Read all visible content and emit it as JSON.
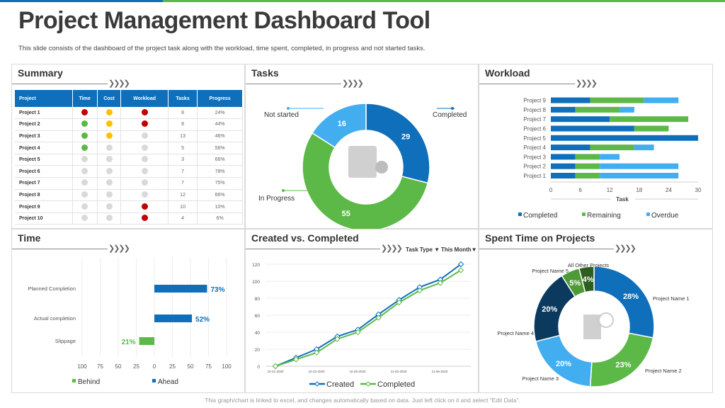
{
  "header": {
    "title": "Project Management Dashboard Tool",
    "subtitle": "This slide consists of the dashboard of the project task along with the workload, time spent, completed, in progress and not started tasks."
  },
  "colors": {
    "blue": "#0f6fba",
    "green": "#5cb947",
    "lightblue": "#42aef0",
    "red": "#c00000",
    "amber": "#ffc000",
    "grey": "#d9d9d9",
    "navy": "#0b3a5e",
    "darkgreen": "#2e5e1e",
    "midgreen": "#4d9a36"
  },
  "arrows": "❯❯❯❯",
  "summary": {
    "title": "Summary",
    "columns": [
      "Project",
      "Time",
      "Cost",
      "Workload",
      "Tasks",
      "Progress"
    ],
    "rows": [
      {
        "project": "Project 1",
        "time": "red",
        "cost": "amber",
        "workload": "red",
        "tasks": "8",
        "progress": "24%"
      },
      {
        "project": "Project 2",
        "time": "green",
        "cost": "amber",
        "workload": "red",
        "tasks": "8",
        "progress": "44%"
      },
      {
        "project": "Project 3",
        "time": "green",
        "cost": "amber",
        "workload": "grey",
        "tasks": "13",
        "progress": "46%"
      },
      {
        "project": "Project 4",
        "time": "green",
        "cost": "grey",
        "workload": "grey",
        "tasks": "5",
        "progress": "56%"
      },
      {
        "project": "Project 5",
        "time": "grey",
        "cost": "grey",
        "workload": "grey",
        "tasks": "3",
        "progress": "66%"
      },
      {
        "project": "Project 6",
        "time": "grey",
        "cost": "grey",
        "workload": "grey",
        "tasks": "7",
        "progress": "78%"
      },
      {
        "project": "Project 7",
        "time": "grey",
        "cost": "grey",
        "workload": "grey",
        "tasks": "7",
        "progress": "75%"
      },
      {
        "project": "Project 8",
        "time": "grey",
        "cost": "grey",
        "workload": "grey",
        "tasks": "12",
        "progress": "66%"
      },
      {
        "project": "Project 9",
        "time": "grey",
        "cost": "grey",
        "workload": "red",
        "tasks": "10",
        "progress": "10%"
      },
      {
        "project": "Project 10",
        "time": "grey",
        "cost": "grey",
        "workload": "red",
        "tasks": "4",
        "progress": "6%"
      }
    ]
  },
  "tasks": {
    "title": "Tasks"
  },
  "workload": {
    "title": "Workload"
  },
  "time": {
    "title": "Time"
  },
  "created": {
    "title": "Created  vs. Completed",
    "filter1": "Task Type ▼",
    "filter2": "This Month▼"
  },
  "spent": {
    "title": "Spent Time on Projects"
  },
  "footer": "This graph/chart is linked to excel, and changes automatically based on data. Just left click on it and select “Edit Data”.",
  "chart_data": [
    {
      "type": "pie",
      "title": "Tasks",
      "labels": [
        "Completed",
        "In Progress",
        "Not started"
      ],
      "values": [
        29,
        55,
        16
      ]
    },
    {
      "type": "bar",
      "title": "Workload",
      "orientation": "horizontal",
      "stacked": true,
      "categories": [
        "Project 1",
        "Project 2",
        "Project 3",
        "Project 4",
        "Project 5",
        "Project 6",
        "Project 7",
        "Project 8",
        "Project 9"
      ],
      "series": [
        {
          "name": "Completed",
          "values": [
            5,
            5,
            5,
            8,
            30,
            17,
            12,
            5,
            8
          ]
        },
        {
          "name": "Remaining",
          "values": [
            5,
            5,
            5,
            9,
            0,
            7,
            16,
            9,
            11
          ]
        },
        {
          "name": "Overdue",
          "values": [
            16,
            16,
            4,
            4,
            0,
            0,
            0,
            3,
            7
          ]
        }
      ],
      "xlabel": "Task",
      "xlim": [
        0,
        30
      ],
      "xticks": [
        "0",
        "6",
        "12",
        "18",
        "24",
        "30"
      ],
      "legend": "bottom"
    },
    {
      "type": "bar",
      "title": "Time",
      "orientation": "horizontal",
      "categories": [
        "Planned Completion",
        "Actual completion",
        "Slippage"
      ],
      "series": [
        {
          "name": "Ahead",
          "values": [
            73,
            52,
            0
          ]
        },
        {
          "name": "Behind",
          "values": [
            0,
            0,
            21
          ]
        }
      ],
      "data_labels": [
        "73%",
        "52%",
        "21%"
      ],
      "xlim": [
        -100,
        100
      ],
      "xticks": [
        "100",
        "75",
        "50",
        "25",
        "0",
        "25",
        "50",
        "75",
        "100"
      ],
      "legend": "bottom"
    },
    {
      "type": "line",
      "title": "Created vs. Completed",
      "xticks": [
        "10-21-2020",
        "10-23-2020",
        "10-25-2020",
        "11-02-2020",
        "11-06-2020"
      ],
      "series": [
        {
          "name": "Created",
          "values": [
            0,
            10,
            20,
            35,
            43,
            61,
            78,
            93,
            102,
            120
          ]
        },
        {
          "name": "Completed",
          "values": [
            0,
            8,
            16,
            32,
            40,
            57,
            75,
            89,
            98,
            113
          ]
        }
      ],
      "ylim": [
        0,
        120
      ],
      "yticks": [
        "0",
        "20",
        "40",
        "60",
        "80",
        "100",
        "120"
      ],
      "legend": "bottom"
    },
    {
      "type": "pie",
      "title": "Spent Time on Projects",
      "labels": [
        "Project Name 1",
        "Project Name 2",
        "Project Name 3",
        "Project Name 4",
        "Project Name 5",
        "All Other Projects"
      ],
      "values": [
        28,
        23,
        20,
        20,
        5,
        4
      ],
      "data_labels": [
        "28%",
        "23%",
        "20%",
        "20%",
        "5%",
        "4%"
      ]
    }
  ]
}
